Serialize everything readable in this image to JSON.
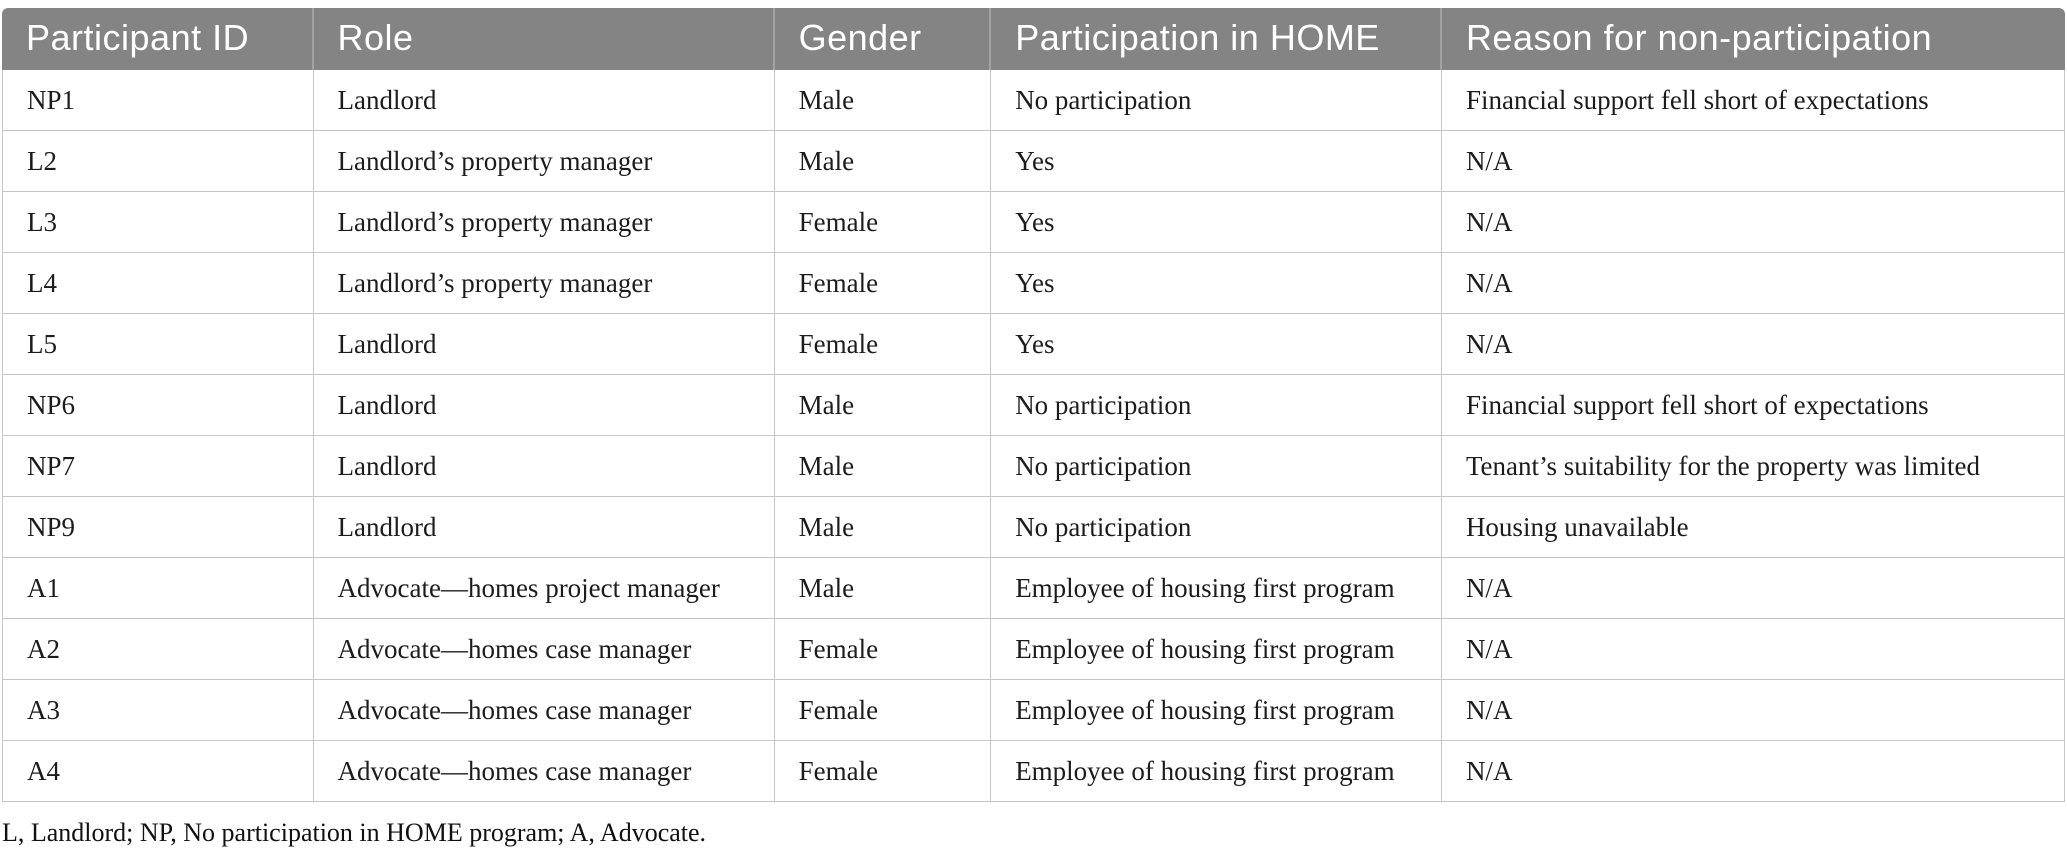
{
  "colors": {
    "header_bg": "#848484",
    "header_text": "#ffffff",
    "header_divider": "#a2a2a2",
    "grid_border": "#c6c6c6",
    "body_text": "#1c1c1c"
  },
  "table": {
    "columns": [
      {
        "key": "id",
        "label": "Participant ID"
      },
      {
        "key": "role",
        "label": "Role"
      },
      {
        "key": "gender",
        "label": "Gender"
      },
      {
        "key": "participation",
        "label": "Participation in HOME"
      },
      {
        "key": "reason",
        "label": "Reason for non-participation"
      }
    ],
    "rows": [
      {
        "id": "NP1",
        "role": "Landlord",
        "gender": "Male",
        "participation": "No participation",
        "reason": "Financial support fell short of expectations"
      },
      {
        "id": "L2",
        "role": "Landlord’s property manager",
        "gender": "Male",
        "participation": "Yes",
        "reason": "N/A"
      },
      {
        "id": "L3",
        "role": "Landlord’s property manager",
        "gender": "Female",
        "participation": "Yes",
        "reason": "N/A"
      },
      {
        "id": "L4",
        "role": "Landlord’s property manager",
        "gender": "Female",
        "participation": "Yes",
        "reason": "N/A"
      },
      {
        "id": "L5",
        "role": "Landlord",
        "gender": "Female",
        "participation": "Yes",
        "reason": "N/A"
      },
      {
        "id": "NP6",
        "role": "Landlord",
        "gender": "Male",
        "participation": "No participation",
        "reason": "Financial support fell short of expectations"
      },
      {
        "id": "NP7",
        "role": "Landlord",
        "gender": "Male",
        "participation": "No participation",
        "reason": "Tenant’s suitability for the property was limited"
      },
      {
        "id": "NP9",
        "role": "Landlord",
        "gender": "Male",
        "participation": "No participation",
        "reason": "Housing unavailable"
      },
      {
        "id": "A1",
        "role": "Advocate—homes project manager",
        "gender": "Male",
        "participation": "Employee of housing first program",
        "reason": "N/A"
      },
      {
        "id": "A2",
        "role": "Advocate—homes case manager",
        "gender": "Female",
        "participation": "Employee of housing first program",
        "reason": "N/A"
      },
      {
        "id": "A3",
        "role": "Advocate—homes case manager",
        "gender": "Female",
        "participation": "Employee of housing first program",
        "reason": "N/A"
      },
      {
        "id": "A4",
        "role": "Advocate—homes case manager",
        "gender": "Female",
        "participation": "Employee of housing first program",
        "reason": "N/A"
      }
    ],
    "footnote": "L, Landlord; NP, No participation in HOME program; A, Advocate."
  }
}
